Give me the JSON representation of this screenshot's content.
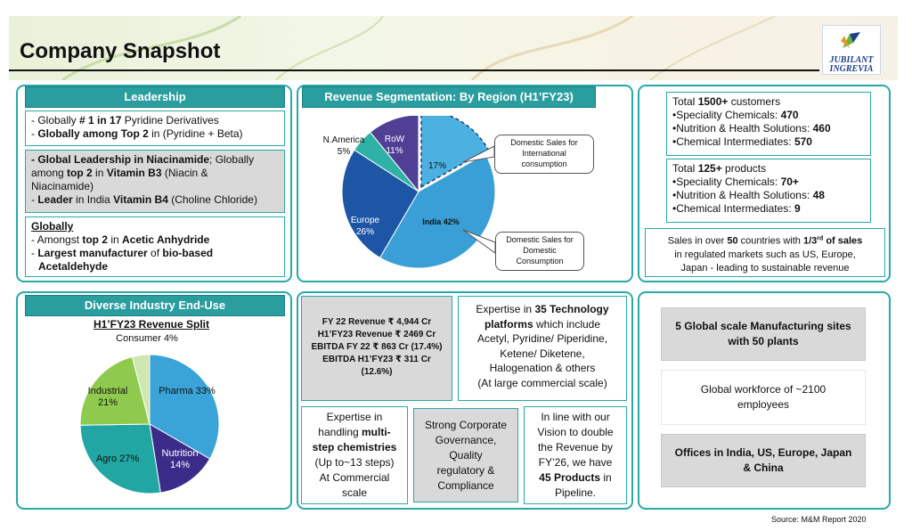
{
  "header": {
    "title": "Company Snapshot",
    "logo_line1": "JUBILANT",
    "logo_line2": "INGREVIA"
  },
  "leadership": {
    "title": "Leadership",
    "box1": [
      {
        "a": "- Globally ",
        "b": "# 1 in 17",
        "c": " Pyridine Derivatives"
      },
      {
        "a": "- ",
        "b": "Globally among Top 2",
        "c": " in (Pyridine + Beta)"
      }
    ],
    "box2_l1_b": "- Global Leadership in Niacinamide",
    "box2_l1_c": "; Globally",
    "box2_l2_a": "among ",
    "box2_l2_b": "top 2",
    "box2_l2_c": " in ",
    "box2_l2_d": "Vitamin B3",
    "box2_l2_e": " (Niacin &",
    "box2_l3": "Niacinamide)",
    "box2_l4_a": "- ",
    "box2_l4_b": "Leader",
    "box2_l4_c": " in India ",
    "box2_l4_d": "Vitamin B4",
    "box2_l4_e": " (Choline Chloride)",
    "box3_head": "Globally",
    "box3_l1_a": "- Amongst ",
    "box3_l1_b": "top 2",
    "box3_l1_c": " in ",
    "box3_l1_d": "Acetic Anhydride",
    "box3_l2_a": "- ",
    "box3_l2_b": "Largest manufacturer",
    "box3_l2_c": " of ",
    "box3_l2_d": "bio-based",
    "box3_l3": "Acetaldehyde"
  },
  "region": {
    "title": "Revenue Segmentation: By Region (H1’FY23)",
    "callout_intl": "Domestic Sales for International consumption",
    "callout_dom": "Domestic Sales for Domestic Consumption",
    "labels": {
      "namerica": "N.America",
      "namerica_pct": "5%",
      "row": "RoW",
      "row_pct": "11%",
      "intl_pct": "17%",
      "india": "India 42%",
      "europe": "Europe",
      "europe_pct": "26%"
    }
  },
  "customers": {
    "total_a": "Total ",
    "total_b": "1500+",
    "total_c": " customers",
    "items": [
      {
        "label": "Speciality Chemicals: ",
        "value": "470"
      },
      {
        "label": "Nutrition & Health Solutions: ",
        "value": "460"
      },
      {
        "label": "Chemical Intermediates: ",
        "value": "570"
      }
    ]
  },
  "products": {
    "total_a": "Total ",
    "total_b": "125+",
    "total_c": " products",
    "items": [
      {
        "label": "Speciality Chemicals: ",
        "value": "70+"
      },
      {
        "label": "Nutrition & Health Solutions: ",
        "value": "48"
      },
      {
        "label": "Chemical Intermediates: ",
        "value": "9"
      }
    ]
  },
  "sales": {
    "l1_a": "Sales in over ",
    "l1_b": "50",
    "l1_c": " countries with ",
    "l1_d": "1/3",
    "l1_sup": "rd",
    "l1_e": " of sales",
    "l2": "in regulated markets such as US, Europe,",
    "l3": "Japan -  leading to sustainable revenue"
  },
  "enduse": {
    "title": "Diverse Industry End-Use",
    "subtitle": "H1’FY23  Revenue Split",
    "labels": {
      "consumer": "Consumer 4%",
      "industrial": "Industrial",
      "industrial_pct": "21%",
      "pharma": "Pharma 33%",
      "agro": "Agro 27%",
      "nutrition": "Nutrition",
      "nutrition_pct": "14%"
    }
  },
  "financials": [
    "FY 22 Revenue ₹ 4,944 Cr",
    "H1’FY23 Revenue ₹ 2469 Cr",
    "EBITDA FY 22 ₹ 863 Cr (17.4%)",
    "EBITDA H1’FY23 ₹ 311 Cr",
    "(12.6%)"
  ],
  "expertise_tech": {
    "l1_a": "Expertise in ",
    "l1_b": "35 Technology",
    "l2_b": "platforms",
    "l2_c": " which include",
    "l3": "Acetyl, Pyridine/ Piperidine,",
    "l4": "Ketene/ Diketene,",
    "l5": "Halogenation & others",
    "l6": "(At large commercial scale)"
  },
  "multistep": {
    "l1": "Expertise in",
    "l2_a": "handling ",
    "l2_b": "multi-",
    "l3_b": "step chemistries",
    "l4": "(Up to~13 steps)",
    "l5": "At Commercial",
    "l6": "scale"
  },
  "governance": [
    "Strong Corporate",
    "Governance,",
    "Quality",
    "regulatory &",
    "Compliance"
  ],
  "vision": {
    "l1": "In line with our",
    "l2": "Vision to double",
    "l3": "the Revenue by",
    "l4": "FY’26, we have",
    "l5_b": "45 Products",
    "l5_c": " in",
    "l6": "Pipeline."
  },
  "right_bottom": {
    "sites_l1": "5 Global scale Manufacturing sites",
    "sites_l2": "with 50 plants",
    "workforce_l1": "Global workforce of ~2100",
    "workforce_l2": "employees",
    "offices_l1": "Offices in India, US, Europe, Japan",
    "offices_l2": "& China"
  },
  "source": "Source: M&M Report 2020",
  "chart_data": [
    {
      "type": "pie",
      "title": "Revenue Segmentation: By Region (H1’FY23)",
      "categories": [
        "Domestic Sales for International consumption",
        "India",
        "Europe",
        "N.America",
        "RoW"
      ],
      "values": [
        17,
        42,
        26,
        5,
        11
      ],
      "colors": [
        "#4cb0e0",
        "#3a9fd6",
        "#1e56a6",
        "#2fb1a6",
        "#4f3f95"
      ]
    },
    {
      "type": "pie",
      "title": "H1’FY23  Revenue Split",
      "categories": [
        "Pharma",
        "Nutrition",
        "Agro",
        "Industrial",
        "Consumer"
      ],
      "values": [
        33,
        14,
        27,
        21,
        4
      ],
      "colors": [
        "#3aa3d8",
        "#3b2c8a",
        "#22a6a3",
        "#8fca4e",
        "#cfe7b1"
      ]
    }
  ]
}
